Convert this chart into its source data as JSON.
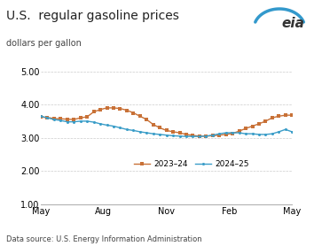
{
  "title": "U.S.  regular gasoline prices",
  "ylabel": "dollars per gallon",
  "source": "Data source: U.S. Energy Information Administration",
  "ylim": [
    1.0,
    5.0
  ],
  "yticks": [
    1.0,
    2.0,
    3.0,
    4.0,
    5.0
  ],
  "xtick_labels": [
    "May",
    "Aug",
    "Nov",
    "Feb",
    "May"
  ],
  "color_2023": "#C87137",
  "color_2024": "#3A9DC8",
  "label_2023": "2023–24",
  "label_2024": "2024–25",
  "series_2023": [
    3.62,
    3.61,
    3.58,
    3.57,
    3.56,
    3.55,
    3.6,
    3.63,
    3.78,
    3.85,
    3.9,
    3.9,
    3.88,
    3.83,
    3.75,
    3.65,
    3.55,
    3.4,
    3.3,
    3.22,
    3.18,
    3.15,
    3.1,
    3.07,
    3.05,
    3.05,
    3.06,
    3.08,
    3.1,
    3.13,
    3.2,
    3.28,
    3.35,
    3.42,
    3.5,
    3.6,
    3.65,
    3.68,
    3.68
  ],
  "series_2024": [
    3.65,
    3.6,
    3.55,
    3.52,
    3.48,
    3.48,
    3.5,
    3.5,
    3.47,
    3.42,
    3.38,
    3.35,
    3.3,
    3.25,
    3.22,
    3.18,
    3.15,
    3.12,
    3.1,
    3.08,
    3.06,
    3.05,
    3.04,
    3.04,
    3.04,
    3.05,
    3.08,
    3.12,
    3.15,
    3.15,
    3.15,
    3.12,
    3.12,
    3.1,
    3.1,
    3.12,
    3.18,
    3.25,
    3.18
  ],
  "background_color": "#ffffff",
  "grid_color": "#cccccc",
  "eia_color": "#333333",
  "eia_arc_color": "#3399cc"
}
